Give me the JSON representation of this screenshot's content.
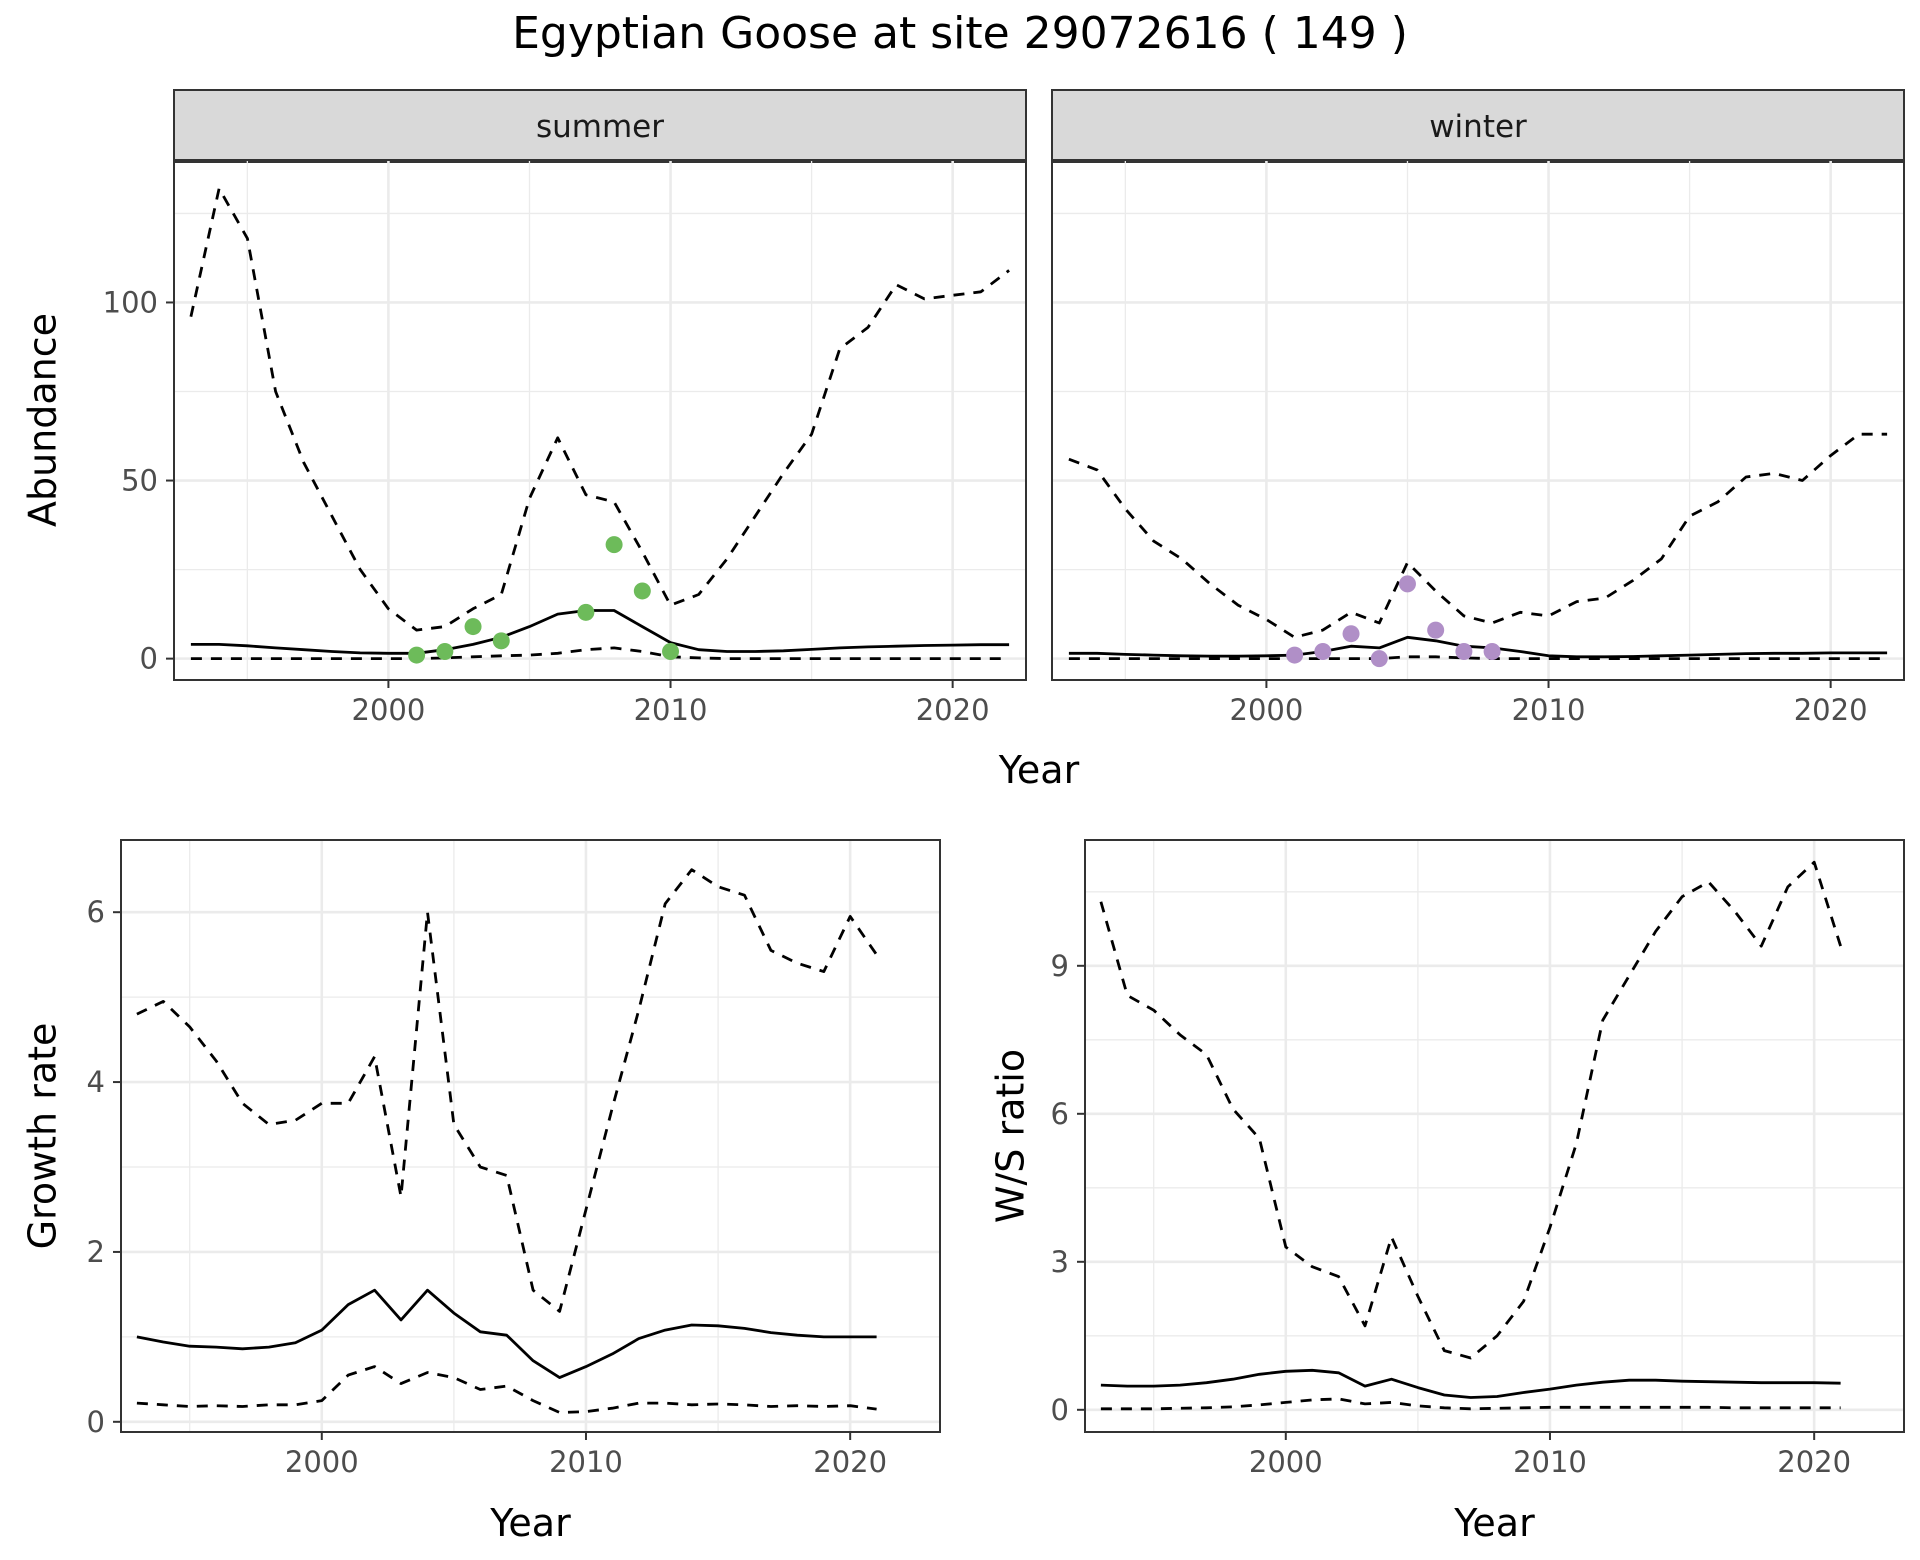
{
  "title": "Egyptian Goose at site 29072616 ( 149 )",
  "colors": {
    "summer_points": "#6dbb5a",
    "winter_points": "#b08fc7",
    "line": "#000000",
    "strip": "#d9d9d9",
    "grid": "#ebebeb"
  },
  "chart_data": [
    {
      "type": "line",
      "panel": "summer",
      "strip_label": "summer",
      "xlabel": "Year",
      "ylabel": "Abundance",
      "xlim": [
        1992.4,
        2022.6
      ],
      "ylim": [
        -6,
        140
      ],
      "xticks": [
        2000,
        2010,
        2020
      ],
      "yticks": [
        0,
        50,
        100
      ],
      "grid": true,
      "x": [
        1993,
        1994,
        1995,
        1996,
        1997,
        1998,
        1999,
        2000,
        2001,
        2002,
        2003,
        2004,
        2005,
        2006,
        2007,
        2008,
        2009,
        2010,
        2011,
        2012,
        2013,
        2014,
        2015,
        2016,
        2017,
        2018,
        2019,
        2020,
        2021,
        2022
      ],
      "series": [
        {
          "role": "fit",
          "style": "solid",
          "values": [
            4,
            4,
            3.6,
            3,
            2.5,
            2,
            1.6,
            1.5,
            1.5,
            2.5,
            4,
            6,
            9,
            12.5,
            13.5,
            13.5,
            9,
            4.5,
            2.5,
            2,
            2,
            2.2,
            2.6,
            3,
            3.3,
            3.5,
            3.7,
            3.8,
            3.9,
            3.9
          ]
        },
        {
          "role": "upper",
          "style": "dashed",
          "values": [
            96,
            132,
            118,
            75,
            55,
            40,
            25,
            14,
            8,
            9,
            14,
            18,
            45,
            62,
            46,
            44,
            30,
            15,
            18,
            28,
            40,
            52,
            63,
            87,
            93,
            105,
            101,
            102,
            103,
            109
          ]
        },
        {
          "role": "lower",
          "style": "dashed",
          "values": [
            0,
            0,
            0,
            0,
            0,
            0,
            0,
            0,
            0,
            0.2,
            0.5,
            0.8,
            1,
            1.5,
            2.5,
            3,
            2,
            0.5,
            0.2,
            0,
            0,
            0,
            0,
            0,
            0,
            0,
            0,
            0,
            0,
            0
          ]
        },
        {
          "role": "observed",
          "style": "points",
          "x": [
            2001,
            2002,
            2003,
            2004,
            2007,
            2008,
            2009,
            2010
          ],
          "values": [
            1,
            2,
            9,
            5,
            13,
            32,
            19,
            2
          ]
        }
      ]
    },
    {
      "type": "line",
      "panel": "winter",
      "strip_label": "winter",
      "xlabel": "Year",
      "ylabel": "",
      "xlim": [
        1992.4,
        2022.6
      ],
      "ylim": [
        -6,
        140
      ],
      "xticks": [
        2000,
        2010,
        2020
      ],
      "yticks": [
        0,
        50,
        100
      ],
      "grid": true,
      "x": [
        1993,
        1994,
        1995,
        1996,
        1997,
        1998,
        1999,
        2000,
        2001,
        2002,
        2003,
        2004,
        2005,
        2006,
        2007,
        2008,
        2009,
        2010,
        2011,
        2012,
        2013,
        2014,
        2015,
        2016,
        2017,
        2018,
        2019,
        2020,
        2021,
        2022
      ],
      "series": [
        {
          "role": "fit",
          "style": "solid",
          "values": [
            1.5,
            1.5,
            1.2,
            1,
            0.8,
            0.7,
            0.7,
            0.8,
            1,
            2,
            3.5,
            3,
            6,
            5,
            3.5,
            3,
            2,
            0.8,
            0.5,
            0.5,
            0.6,
            0.8,
            1,
            1.2,
            1.4,
            1.5,
            1.5,
            1.6,
            1.6,
            1.6
          ]
        },
        {
          "role": "upper",
          "style": "dashed",
          "values": [
            56,
            53,
            42,
            33,
            28,
            21,
            15,
            11,
            6,
            8,
            13,
            10,
            27,
            19,
            12,
            10,
            13,
            12,
            16,
            17,
            22,
            28,
            40,
            44,
            51,
            52,
            50,
            57,
            63,
            63
          ]
        },
        {
          "role": "lower",
          "style": "dashed",
          "values": [
            0,
            0,
            0,
            0,
            0,
            0,
            0,
            0,
            0,
            0,
            0,
            0,
            0.5,
            0.5,
            0.2,
            0,
            0,
            0,
            0,
            0,
            0,
            0,
            0,
            0,
            0,
            0,
            0,
            0,
            0,
            0
          ]
        },
        {
          "role": "observed",
          "style": "points",
          "x": [
            2001,
            2002,
            2003,
            2004,
            2005,
            2006,
            2007,
            2008
          ],
          "values": [
            1,
            2,
            7,
            0,
            21,
            8,
            2,
            2
          ]
        }
      ]
    },
    {
      "type": "line",
      "panel": "growth",
      "xlabel": "Year",
      "ylabel": "Growth rate",
      "xlim": [
        1992.4,
        2023.4
      ],
      "ylim": [
        -0.12,
        6.85
      ],
      "xticks": [
        2000,
        2010,
        2020
      ],
      "yticks": [
        0,
        2,
        4,
        6
      ],
      "grid": true,
      "x": [
        1993,
        1994,
        1995,
        1996,
        1997,
        1998,
        1999,
        2000,
        2001,
        2002,
        2003,
        2004,
        2005,
        2006,
        2007,
        2008,
        2009,
        2010,
        2011,
        2012,
        2013,
        2014,
        2015,
        2016,
        2017,
        2018,
        2019,
        2020,
        2021
      ],
      "series": [
        {
          "role": "fit",
          "style": "solid",
          "values": [
            1,
            0.94,
            0.89,
            0.88,
            0.86,
            0.88,
            0.93,
            1.08,
            1.38,
            1.55,
            1.2,
            1.55,
            1.28,
            1.06,
            1.02,
            0.72,
            0.52,
            0.65,
            0.8,
            0.98,
            1.08,
            1.14,
            1.13,
            1.1,
            1.05,
            1.02,
            1,
            1,
            1
          ]
        },
        {
          "role": "upper",
          "style": "dashed",
          "values": [
            4.8,
            4.95,
            4.65,
            4.25,
            3.75,
            3.5,
            3.55,
            3.75,
            3.75,
            4.3,
            2.65,
            6,
            3.5,
            3,
            2.9,
            1.55,
            1.3,
            2.5,
            3.7,
            4.85,
            6.1,
            6.5,
            6.3,
            6.2,
            5.55,
            5.4,
            5.3,
            5.95,
            5.5
          ]
        },
        {
          "role": "lower",
          "style": "dashed",
          "values": [
            0.22,
            0.2,
            0.18,
            0.19,
            0.18,
            0.2,
            0.2,
            0.25,
            0.55,
            0.65,
            0.45,
            0.58,
            0.52,
            0.38,
            0.42,
            0.25,
            0.11,
            0.12,
            0.16,
            0.22,
            0.22,
            0.2,
            0.21,
            0.2,
            0.18,
            0.19,
            0.18,
            0.19,
            0.15
          ]
        }
      ]
    },
    {
      "type": "line",
      "panel": "ratio",
      "xlabel": "Year",
      "ylabel": "W/S ratio",
      "xlim": [
        1992.4,
        2023.4
      ],
      "ylim": [
        -0.45,
        11.55
      ],
      "xticks": [
        2000,
        2010,
        2020
      ],
      "yticks": [
        0,
        3,
        6,
        9
      ],
      "grid": true,
      "x": [
        1993,
        1994,
        1995,
        1996,
        1997,
        1998,
        1999,
        2000,
        2001,
        2002,
        2003,
        2004,
        2005,
        2006,
        2007,
        2008,
        2009,
        2010,
        2011,
        2012,
        2013,
        2014,
        2015,
        2016,
        2017,
        2018,
        2019,
        2020,
        2021
      ],
      "series": [
        {
          "role": "fit",
          "style": "solid",
          "values": [
            0.5,
            0.48,
            0.48,
            0.5,
            0.55,
            0.62,
            0.72,
            0.78,
            0.8,
            0.75,
            0.48,
            0.62,
            0.45,
            0.3,
            0.25,
            0.27,
            0.35,
            0.42,
            0.5,
            0.56,
            0.6,
            0.6,
            0.58,
            0.57,
            0.56,
            0.55,
            0.55,
            0.55,
            0.54
          ]
        },
        {
          "role": "upper",
          "style": "dashed",
          "values": [
            10.3,
            8.4,
            8.1,
            7.6,
            7.2,
            6.1,
            5.5,
            3.3,
            2.9,
            2.7,
            1.7,
            3.5,
            2.3,
            1.2,
            1.05,
            1.5,
            2.2,
            3.7,
            5.4,
            7.9,
            8.8,
            9.7,
            10.4,
            10.7,
            10.1,
            9.4,
            10.6,
            11.1,
            9.4
          ]
        },
        {
          "role": "lower",
          "style": "dashed",
          "values": [
            0.02,
            0.02,
            0.02,
            0.03,
            0.04,
            0.06,
            0.1,
            0.15,
            0.2,
            0.22,
            0.12,
            0.15,
            0.08,
            0.04,
            0.02,
            0.03,
            0.04,
            0.05,
            0.05,
            0.05,
            0.05,
            0.05,
            0.05,
            0.05,
            0.04,
            0.04,
            0.04,
            0.04,
            0.04
          ]
        }
      ]
    }
  ]
}
